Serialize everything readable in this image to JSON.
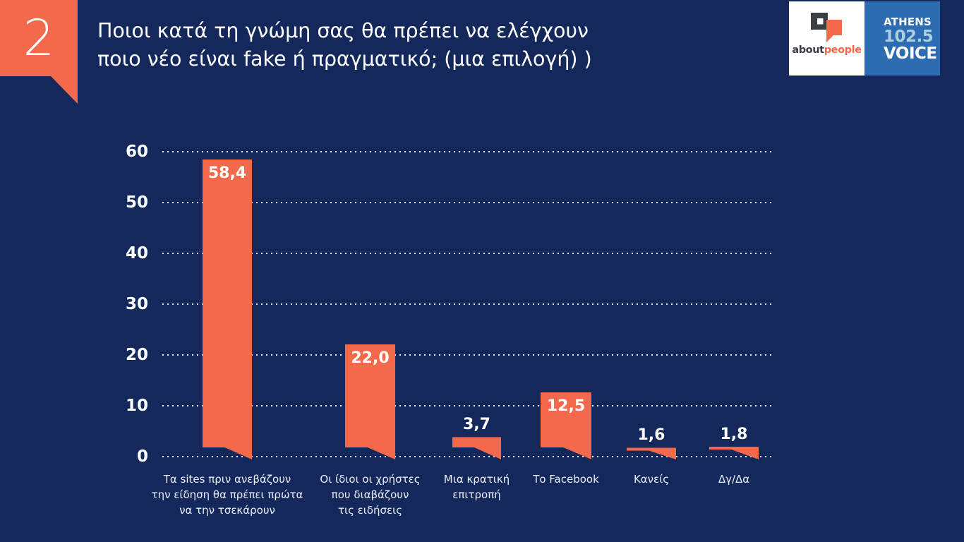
{
  "slide": {
    "number": "2",
    "title_line1": "Ποιοι κατά τη γνώμη σας θα πρέπει να ελέγχουν",
    "title_line2": "ποιο νέο είναι fake ή πραγματικό; (μια επιλογή) )"
  },
  "logos": {
    "aboutpeople": {
      "part1": "about",
      "part2": "people"
    },
    "athens_voice": {
      "line1": "ATHENS",
      "line2": "102.5",
      "line3": "VOICE"
    }
  },
  "colors": {
    "background": "#14285C",
    "bar": "#F2694C",
    "tab": "#F2694C",
    "grid": "#FFFFFF",
    "text": "#FFFFFF",
    "category_text": "#E9EEF7",
    "logo_blue": "#2D6CB3",
    "logo_light_blue": "#A9CFE0",
    "logo_dark": "#3A3E45"
  },
  "chart_data": {
    "type": "bar",
    "title": "Ποιοι κατά τη γνώμη σας θα πρέπει να ελέγχουν ποιο νέο είναι fake ή πραγματικό; (μια επιλογή) )",
    "categories": [
      "Τα sites πριν ανεβάζουν την είδηση θα πρέπει πρώτα να την τσεκάρουν",
      "Οι ίδιοι οι χρήστες που διαβάζουν τις ειδήσεις",
      "Μια κρατική επιτροπή",
      "Το Facebook",
      "Κανείς",
      "Δγ/Δα"
    ],
    "category_lines": [
      [
        "Τα sites πριν ανεβάζουν",
        "την είδηση θα πρέπει πρώτα",
        "να την τσεκάρουν"
      ],
      [
        "Οι ίδιοι οι χρήστες",
        "που διαβάζουν",
        "τις ειδήσεις"
      ],
      [
        "Μια κρατική",
        "επιτροπή"
      ],
      [
        "Το Facebook"
      ],
      [
        "Κανείς"
      ],
      [
        "Δγ/Δα"
      ]
    ],
    "values": [
      58.4,
      22.0,
      3.7,
      12.5,
      1.6,
      1.8
    ],
    "value_labels": [
      "58,4",
      "22,0",
      "3,7",
      "12,5",
      "1,6",
      "1,8"
    ],
    "y_ticks": [
      60,
      50,
      40,
      30,
      20,
      10,
      0
    ],
    "ylim": [
      0,
      60
    ],
    "xlabel": "",
    "ylabel": "",
    "grid": "horizontal-dotted",
    "legend": "none",
    "bar_color": "#F2694C"
  }
}
